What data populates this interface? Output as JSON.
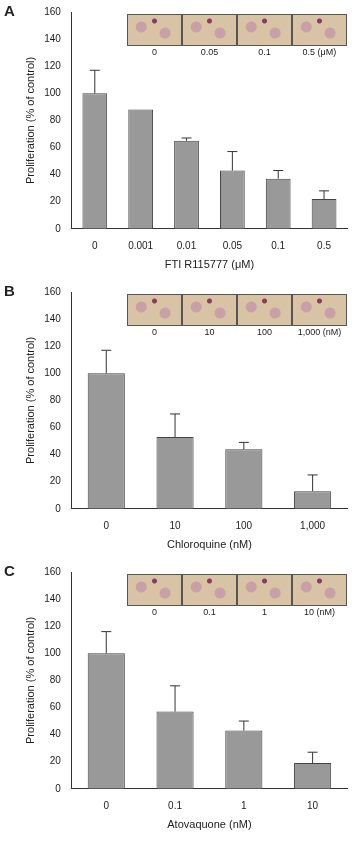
{
  "chart_data": [
    {
      "type": "bar",
      "title": "A",
      "categories": [
        "0",
        "0.001",
        "0.01",
        "0.05",
        "0.1",
        "0.5"
      ],
      "values": [
        100,
        88,
        65,
        43,
        37,
        22
      ],
      "errors": [
        17,
        null,
        2,
        14,
        6,
        6
      ],
      "color": "#999999",
      "xlabel": "FTI R115777 (μM)",
      "ylabel": "Proliferation (% of control)",
      "ylim": [
        0,
        160
      ],
      "yticks": [
        0,
        20,
        40,
        60,
        80,
        100,
        120,
        140,
        160
      ],
      "grid": false,
      "annotations": [
        "0",
        "0.05",
        "0.1",
        "0.5 (μM)"
      ]
    },
    {
      "type": "bar",
      "title": "B",
      "categories": [
        "0",
        "10",
        "100",
        "1,000"
      ],
      "values": [
        100,
        53,
        44,
        13
      ],
      "errors": [
        17,
        17,
        5,
        12
      ],
      "color": "#999999",
      "xlabel": "Chloroquine (nM)",
      "ylabel": "Proliferation (% of control)",
      "ylim": [
        0,
        160
      ],
      "yticks": [
        0,
        20,
        40,
        60,
        80,
        100,
        120,
        140,
        160
      ],
      "grid": false,
      "annotations": [
        "0",
        "10",
        "100",
        "1,000 (nM)"
      ]
    },
    {
      "type": "bar",
      "title": "C",
      "categories": [
        "0",
        "0.1",
        "1",
        "10"
      ],
      "values": [
        100,
        57,
        43,
        19
      ],
      "errors": [
        16,
        19,
        7,
        8
      ],
      "color": "#999999",
      "xlabel": "Atovaquone (nM)",
      "ylabel": "Proliferation (% of control)",
      "ylim": [
        0,
        160
      ],
      "yticks": [
        0,
        20,
        40,
        60,
        80,
        100,
        120,
        140,
        160
      ],
      "grid": false,
      "annotations": [
        "0",
        "0.1",
        "1",
        "10 (nM)"
      ]
    }
  ]
}
